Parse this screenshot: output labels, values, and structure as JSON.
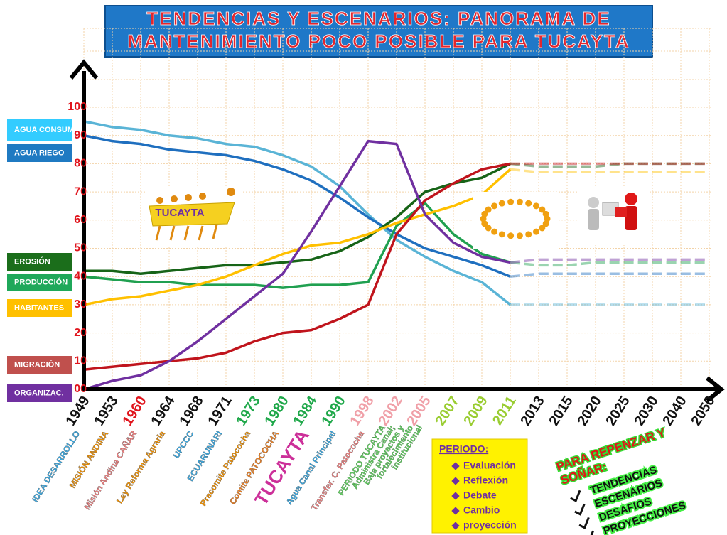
{
  "chart_data": {
    "type": "line",
    "title": [
      "TENDENCIAS Y ESCENARIOS: PANORAMA DE",
      "MANTENIMIENTO POCO POSIBLE PARA TUCAYTA"
    ],
    "categories": [
      "1949",
      "1953",
      "1960",
      "1964",
      "1968",
      "1971",
      "1973",
      "1980",
      "1984",
      "1990",
      "1998",
      "2002",
      "2005",
      "2007",
      "2009",
      "2011",
      "2013",
      "2015",
      "2020",
      "2025",
      "2030",
      "2040",
      "2050"
    ],
    "category_colors": [
      "#111111",
      "#111111",
      "#e0141c",
      "#111111",
      "#111111",
      "#111111",
      "#1fa84a",
      "#1fa84a",
      "#1fa84a",
      "#1fa84a",
      "#f0a0a8",
      "#f0a0a8",
      "#f0a0a8",
      "#9acd32",
      "#9acd32",
      "#9acd32",
      "#111111",
      "#111111",
      "#111111",
      "#111111",
      "#111111",
      "#111111",
      "#111111"
    ],
    "ylim": [
      0,
      100
    ],
    "yticks": [
      {
        "value": 0,
        "label": "00"
      },
      10,
      20,
      30,
      40,
      50,
      60,
      70,
      80,
      90,
      100
    ],
    "grid": true,
    "projection_start": 15,
    "series": [
      {
        "name": "AGUA CONSUM.",
        "color": "#5ab4d6",
        "box": "#33ccff",
        "values": [
          95,
          93,
          92,
          90,
          89,
          87,
          86,
          83,
          79,
          72,
          62,
          53,
          47,
          42,
          38,
          30,
          30,
          30,
          30,
          30,
          30,
          30,
          30
        ]
      },
      {
        "name": "AGUA RIEGO",
        "color": "#1f6fbf",
        "box": "#1f7ac2",
        "values": [
          90,
          88,
          87,
          85,
          84,
          83,
          81,
          78,
          74,
          68,
          61,
          55,
          50,
          47,
          44,
          40,
          41,
          41,
          41,
          41,
          41,
          41,
          41
        ]
      },
      {
        "name": "EROSIÓN",
        "color": "#176417",
        "box": "#1b6e1b",
        "values": [
          42,
          42,
          41,
          42,
          43,
          44,
          44,
          45,
          46,
          49,
          54,
          61,
          70,
          73,
          75,
          80,
          79,
          79,
          79,
          80,
          80,
          80,
          80
        ]
      },
      {
        "name": "PRODUCCIÓN",
        "color": "#20a050",
        "box": "#1fa85a",
        "values": [
          40,
          39,
          38,
          38,
          37,
          37,
          37,
          36,
          37,
          37,
          38,
          58,
          66,
          55,
          48,
          45,
          44,
          44,
          45,
          45,
          45,
          45,
          45
        ]
      },
      {
        "name": "HABITANTES",
        "color": "#ffc000",
        "box": "#ffc000",
        "values": [
          30,
          32,
          33,
          35,
          37,
          40,
          44,
          48,
          51,
          52,
          55,
          59,
          62,
          65,
          69,
          78,
          77,
          77,
          77,
          77,
          77,
          77,
          77
        ]
      },
      {
        "name": "MIGRACIÓN",
        "color": "#c0141c",
        "box": "#c0504d",
        "values": [
          7,
          8,
          9,
          10,
          11,
          13,
          17,
          20,
          21,
          25,
          30,
          55,
          67,
          73,
          78,
          80,
          80,
          80,
          80,
          80,
          80,
          80,
          80
        ]
      },
      {
        "name": "ORGANIZAC.",
        "color": "#7030a0",
        "box": "#7030a0",
        "values": [
          0,
          3,
          5,
          10,
          17,
          25,
          33,
          41,
          56,
          72,
          88,
          87,
          62,
          52,
          47,
          45,
          46,
          46,
          46,
          46,
          46,
          46,
          46
        ]
      }
    ],
    "event_labels": [
      "IDEA DESARROLLO",
      "MISIÓN ANDINA",
      "Misión Andina CAÑAR",
      "Ley Reforma Agraria",
      "UPCCC",
      "ECUARUNARI",
      "Precomite Patococha",
      "Comite PATOCOCHA",
      "TUCAYTA",
      "Agua Canal Principal",
      "Transfer. C. Patococha"
    ],
    "event_colors": [
      "#3aa8e0",
      "#f09000",
      "#f08080",
      "#f09000",
      "#3aa8e0",
      "#3aa8e0",
      "#f09000",
      "#f08020",
      "#cc2f99",
      "#3aa8e0",
      "#f08080"
    ],
    "period_note": [
      "PERIODO TUCAYTA",
      "Administra Canal;",
      "Baja proyectos y",
      "fortalecimiento",
      "institucional"
    ],
    "image_label": "TUCAYTA",
    "period_box": {
      "title": "PERIODO:",
      "items": [
        "Evaluación",
        "Reflexión",
        "Debate",
        "Cambio",
        "proyección"
      ]
    },
    "rethink_box": {
      "title": [
        "PARA REPENZAR Y",
        "SOÑAR:"
      ],
      "items": [
        "TENDENCIAS",
        "ESCENARIOS",
        "DESAFIOS",
        "PROYECCIONES"
      ]
    }
  }
}
